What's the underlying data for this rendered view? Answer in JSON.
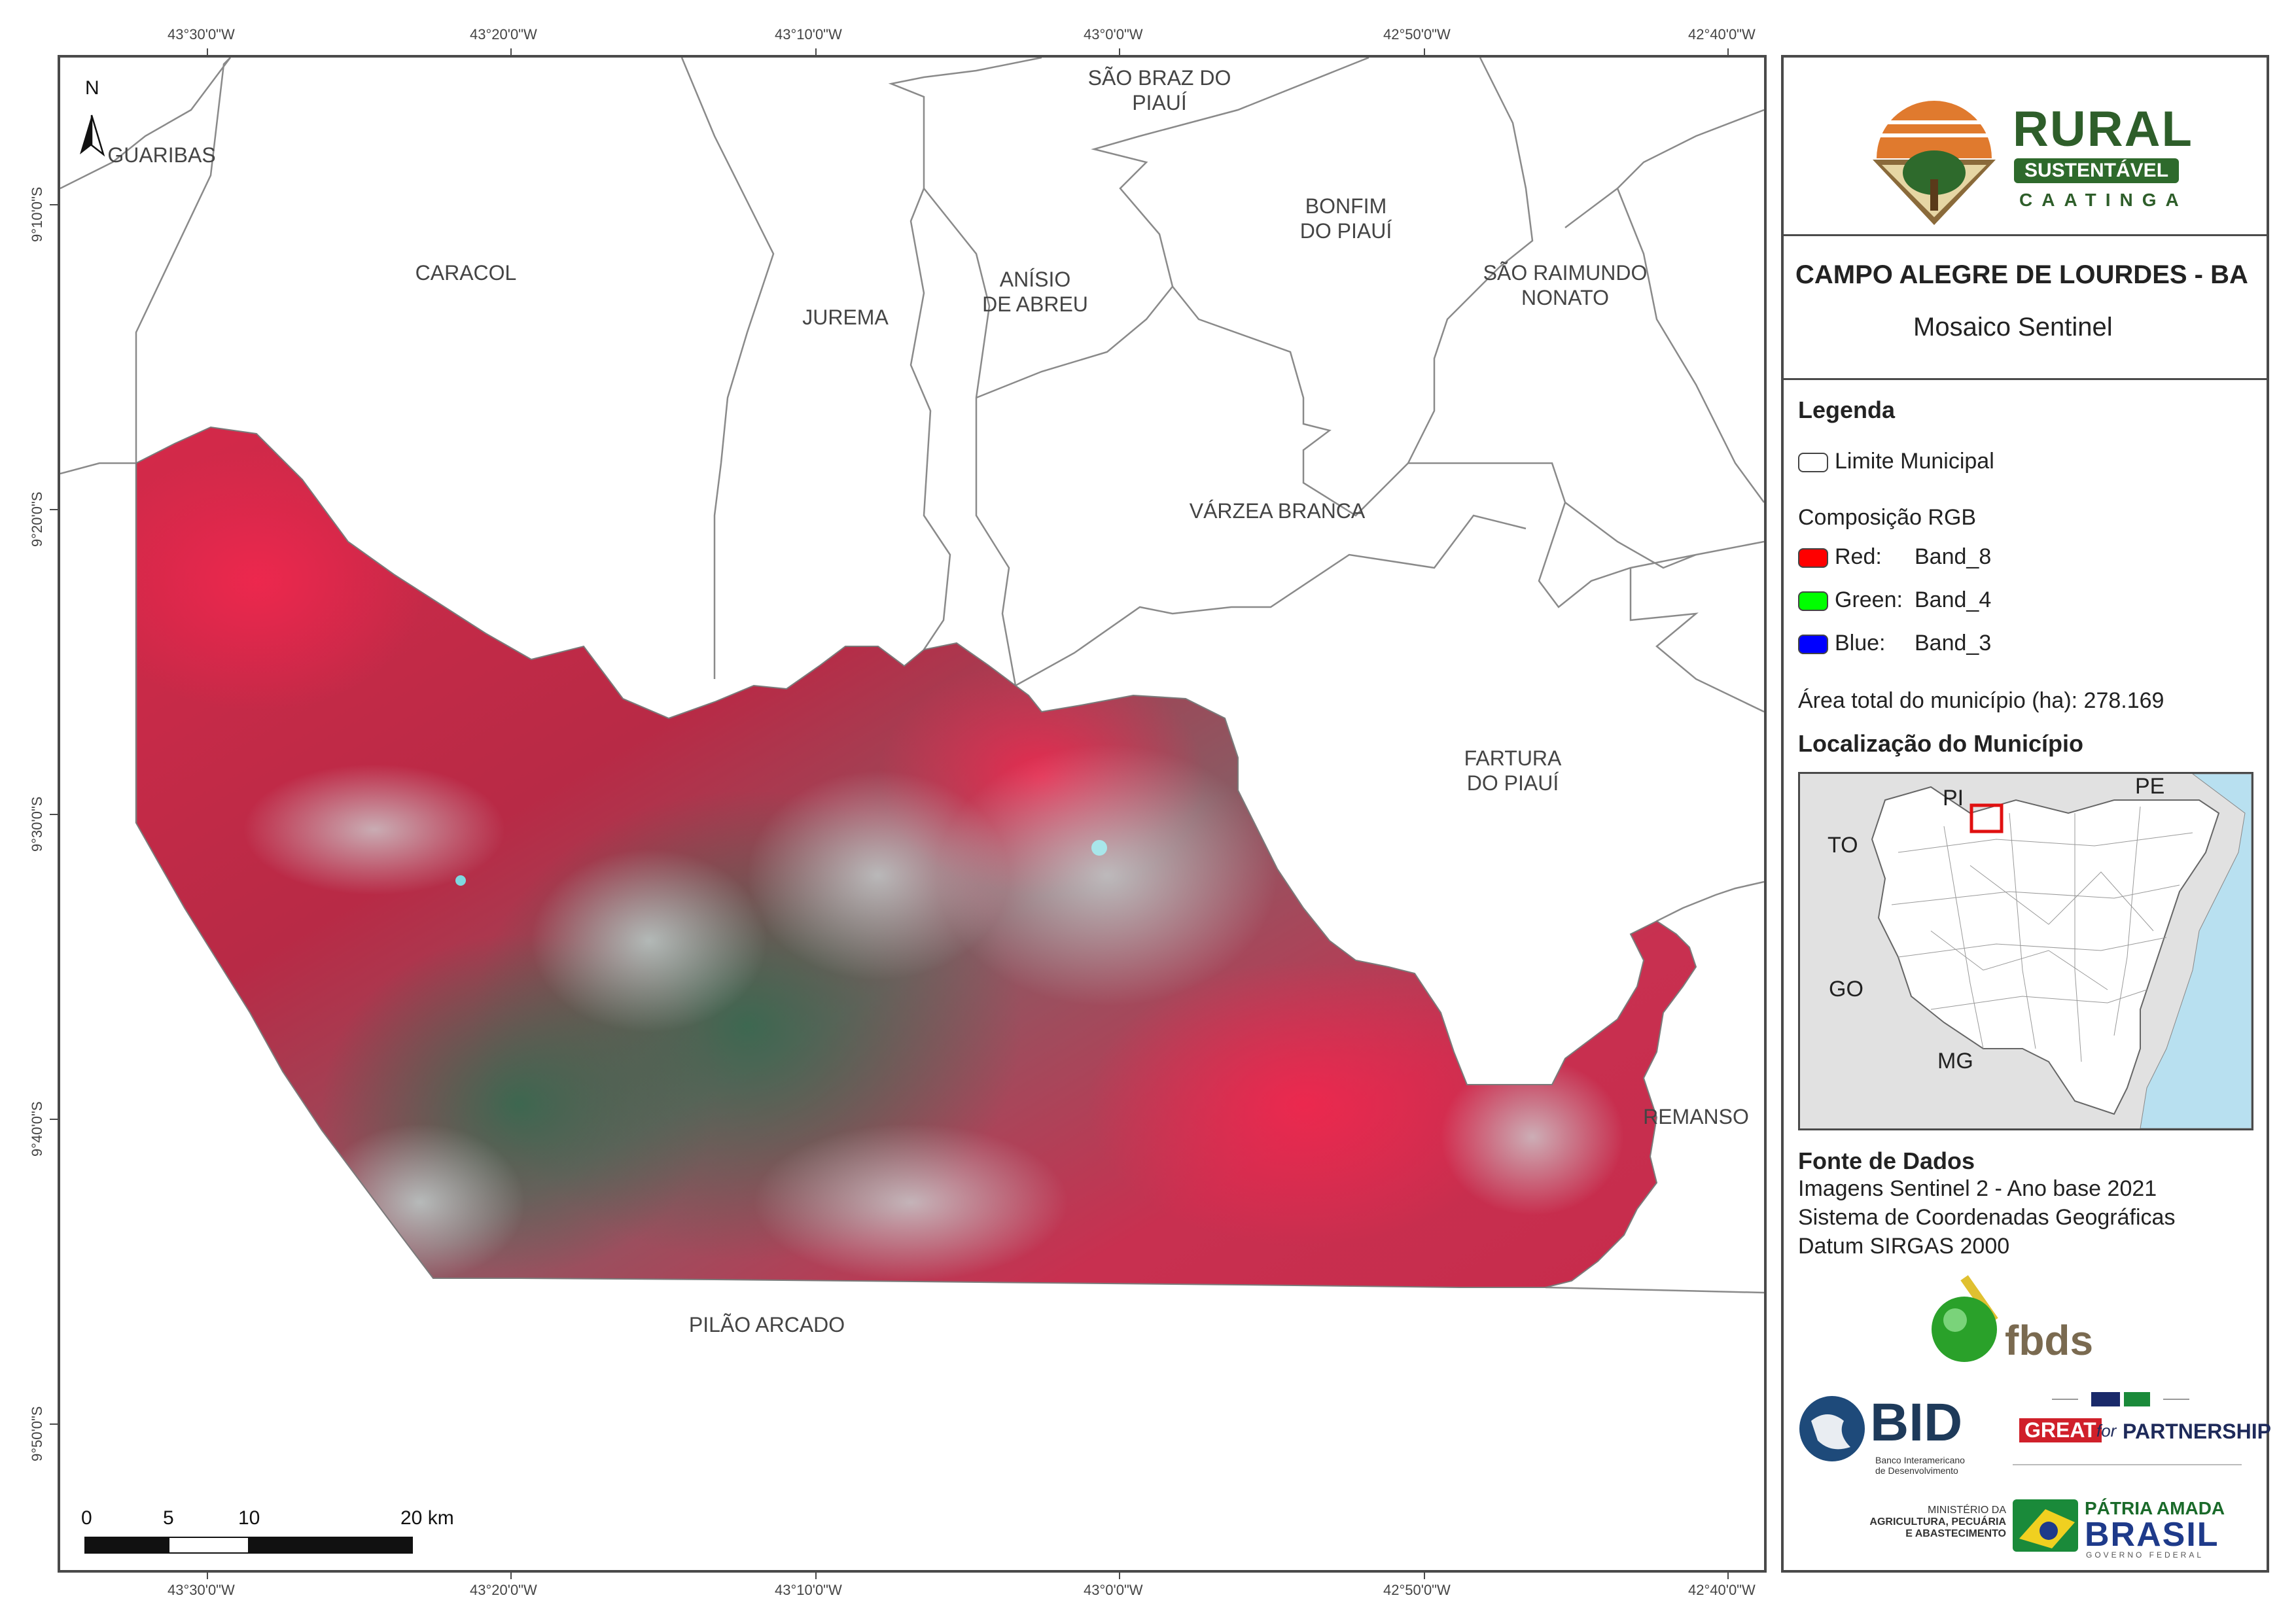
{
  "map": {
    "north_label": "N",
    "top_coords": [
      "43°30'0\"W",
      "43°20'0\"W",
      "43°10'0\"W",
      "43°0'0\"W",
      "42°50'0\"W",
      "42°40'0\"W"
    ],
    "bottom_coords": [
      "43°30'0\"W",
      "43°20'0\"W",
      "43°10'0\"W",
      "43°0'0\"W",
      "42°50'0\"W",
      "42°40'0\"W"
    ],
    "left_coords": [
      "9°10'0\"S",
      "9°20'0\"S",
      "9°30'0\"S",
      "9°40'0\"S",
      "9°50'0\"S"
    ],
    "municipalities": {
      "guaribas": "GUARIBAS",
      "caracol": "CARACOL",
      "jurema": "JUREMA",
      "anisio": "ANÍSIO\nDE ABREU",
      "sao_braz": "SÃO BRAZ DO\nPIAUÍ",
      "bonfim": "BONFIM\nDO PIAUÍ",
      "sao_raimundo": "SÃO RAIMUNDO\nNONATO",
      "varzea": "VÁRZEA BRANCA",
      "fartura": "FARTURA\nDO PIAUÍ",
      "remanso": "REMANSO",
      "pilao": "PILÃO ARCADO"
    },
    "scale_bar": {
      "labels": [
        "0",
        "5",
        "10",
        "20 km"
      ]
    },
    "colors": {
      "vegetation_red": "#d9294a",
      "boundary": "#8a8a8a"
    }
  },
  "panel": {
    "logo": {
      "rural": "RURAL",
      "sustentavel": "SUSTENTÁVEL",
      "caatinga": "CAATINGA"
    },
    "title": "CAMPO ALEGRE DE LOURDES - BA",
    "subtitle": "Mosaico Sentinel",
    "legend": {
      "heading": "Legenda",
      "limit": "Limite Municipal",
      "rgb_heading": "Composição RGB",
      "bands": [
        {
          "channel": "Red:",
          "band": "Band_8",
          "color": "#ff0000"
        },
        {
          "channel": "Green:",
          "band": "Band_4",
          "color": "#00ff00"
        },
        {
          "channel": "Blue:",
          "band": "Band_3",
          "color": "#0000ff"
        }
      ],
      "area": "Área total do município (ha): 278.169"
    },
    "location": {
      "heading": "Localização do Município",
      "states": {
        "pi": "PI",
        "pe": "PE",
        "to": "TO",
        "go": "GO",
        "mg": "MG"
      }
    },
    "sources": {
      "heading": "Fonte de Dados",
      "lines": [
        "Imagens Sentinel 2 - Ano base 2021",
        "Sistema de Coordenadas Geográficas",
        "Datum SIRGAS 2000"
      ]
    },
    "partners": {
      "fbds": "fbds",
      "bid": "BID",
      "bid_sub1": "Banco Interamericano",
      "bid_sub2": "de Desenvolvimento",
      "great": "GREAT",
      "for": "for",
      "partnership": "PARTNERSHIP",
      "ministry1": "MINISTÉRIO DA",
      "ministry2": "AGRICULTURA, PECUÁRIA",
      "ministry3": "E ABASTECIMENTO",
      "patria": "PÁTRIA AMADA",
      "brasil": "BRASIL",
      "governo": "GOVERNO FEDERAL"
    }
  }
}
